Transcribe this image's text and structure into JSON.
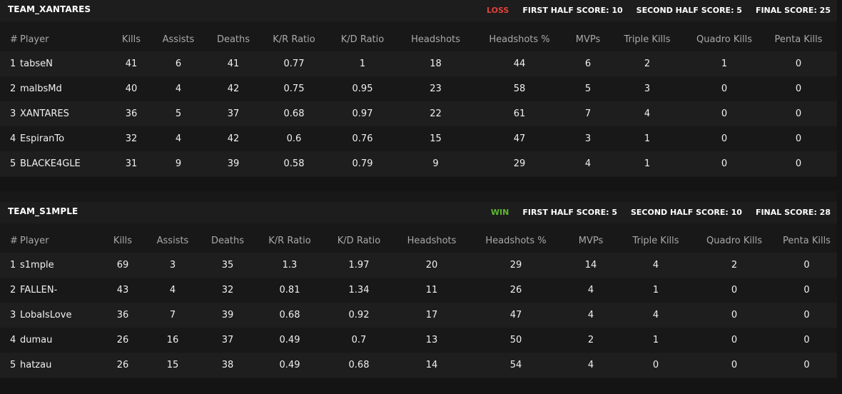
{
  "columns": [
    "#",
    "Player",
    "Kills",
    "Assists",
    "Deaths",
    "K/R Ratio",
    "K/D Ratio",
    "Headshots",
    "Headshots %",
    "MVPs",
    "Triple Kills",
    "Quadro Kills",
    "Penta Kills"
  ],
  "teams": [
    {
      "name": "TEAM_XANTARES",
      "result": "LOSS",
      "result_color": "#e0433a",
      "first_half": "FIRST HALF SCORE: 10",
      "second_half": "SECOND HALF SCORE: 5",
      "final": "FINAL SCORE: 25",
      "players": [
        [
          "1",
          "tabseN",
          "41",
          "6",
          "41",
          "0.77",
          "1",
          "18",
          "44",
          "6",
          "2",
          "1",
          "0"
        ],
        [
          "2",
          "malbsMd",
          "40",
          "4",
          "42",
          "0.75",
          "0.95",
          "23",
          "58",
          "5",
          "3",
          "0",
          "0"
        ],
        [
          "3",
          "XANTARES",
          "36",
          "5",
          "37",
          "0.68",
          "0.97",
          "22",
          "61",
          "7",
          "4",
          "0",
          "0"
        ],
        [
          "4",
          "EspiranTo",
          "32",
          "4",
          "42",
          "0.6",
          "0.76",
          "15",
          "47",
          "3",
          "1",
          "0",
          "0"
        ],
        [
          "5",
          "BLACKE4GLE",
          "31",
          "9",
          "39",
          "0.58",
          "0.79",
          "9",
          "29",
          "4",
          "1",
          "0",
          "0"
        ]
      ]
    },
    {
      "name": "TEAM_S1MPLE",
      "result": "WIN",
      "result_color": "#5fb832",
      "first_half": "FIRST HALF SCORE: 5",
      "second_half": "SECOND HALF SCORE: 10",
      "final": "FINAL SCORE: 28",
      "players": [
        [
          "1",
          "s1mple",
          "69",
          "3",
          "35",
          "1.3",
          "1.97",
          "20",
          "29",
          "14",
          "4",
          "2",
          "0"
        ],
        [
          "2",
          "FALLEN-",
          "43",
          "4",
          "32",
          "0.81",
          "1.34",
          "11",
          "26",
          "4",
          "1",
          "0",
          "0"
        ],
        [
          "3",
          "LobaIsLove",
          "36",
          "7",
          "39",
          "0.68",
          "0.92",
          "17",
          "47",
          "4",
          "4",
          "0",
          "0"
        ],
        [
          "4",
          "dumau",
          "26",
          "16",
          "37",
          "0.49",
          "0.7",
          "13",
          "50",
          "2",
          "1",
          "0",
          "0"
        ],
        [
          "5",
          "hatzau",
          "26",
          "15",
          "38",
          "0.49",
          "0.68",
          "14",
          "54",
          "4",
          "0",
          "0",
          "0"
        ]
      ]
    }
  ]
}
